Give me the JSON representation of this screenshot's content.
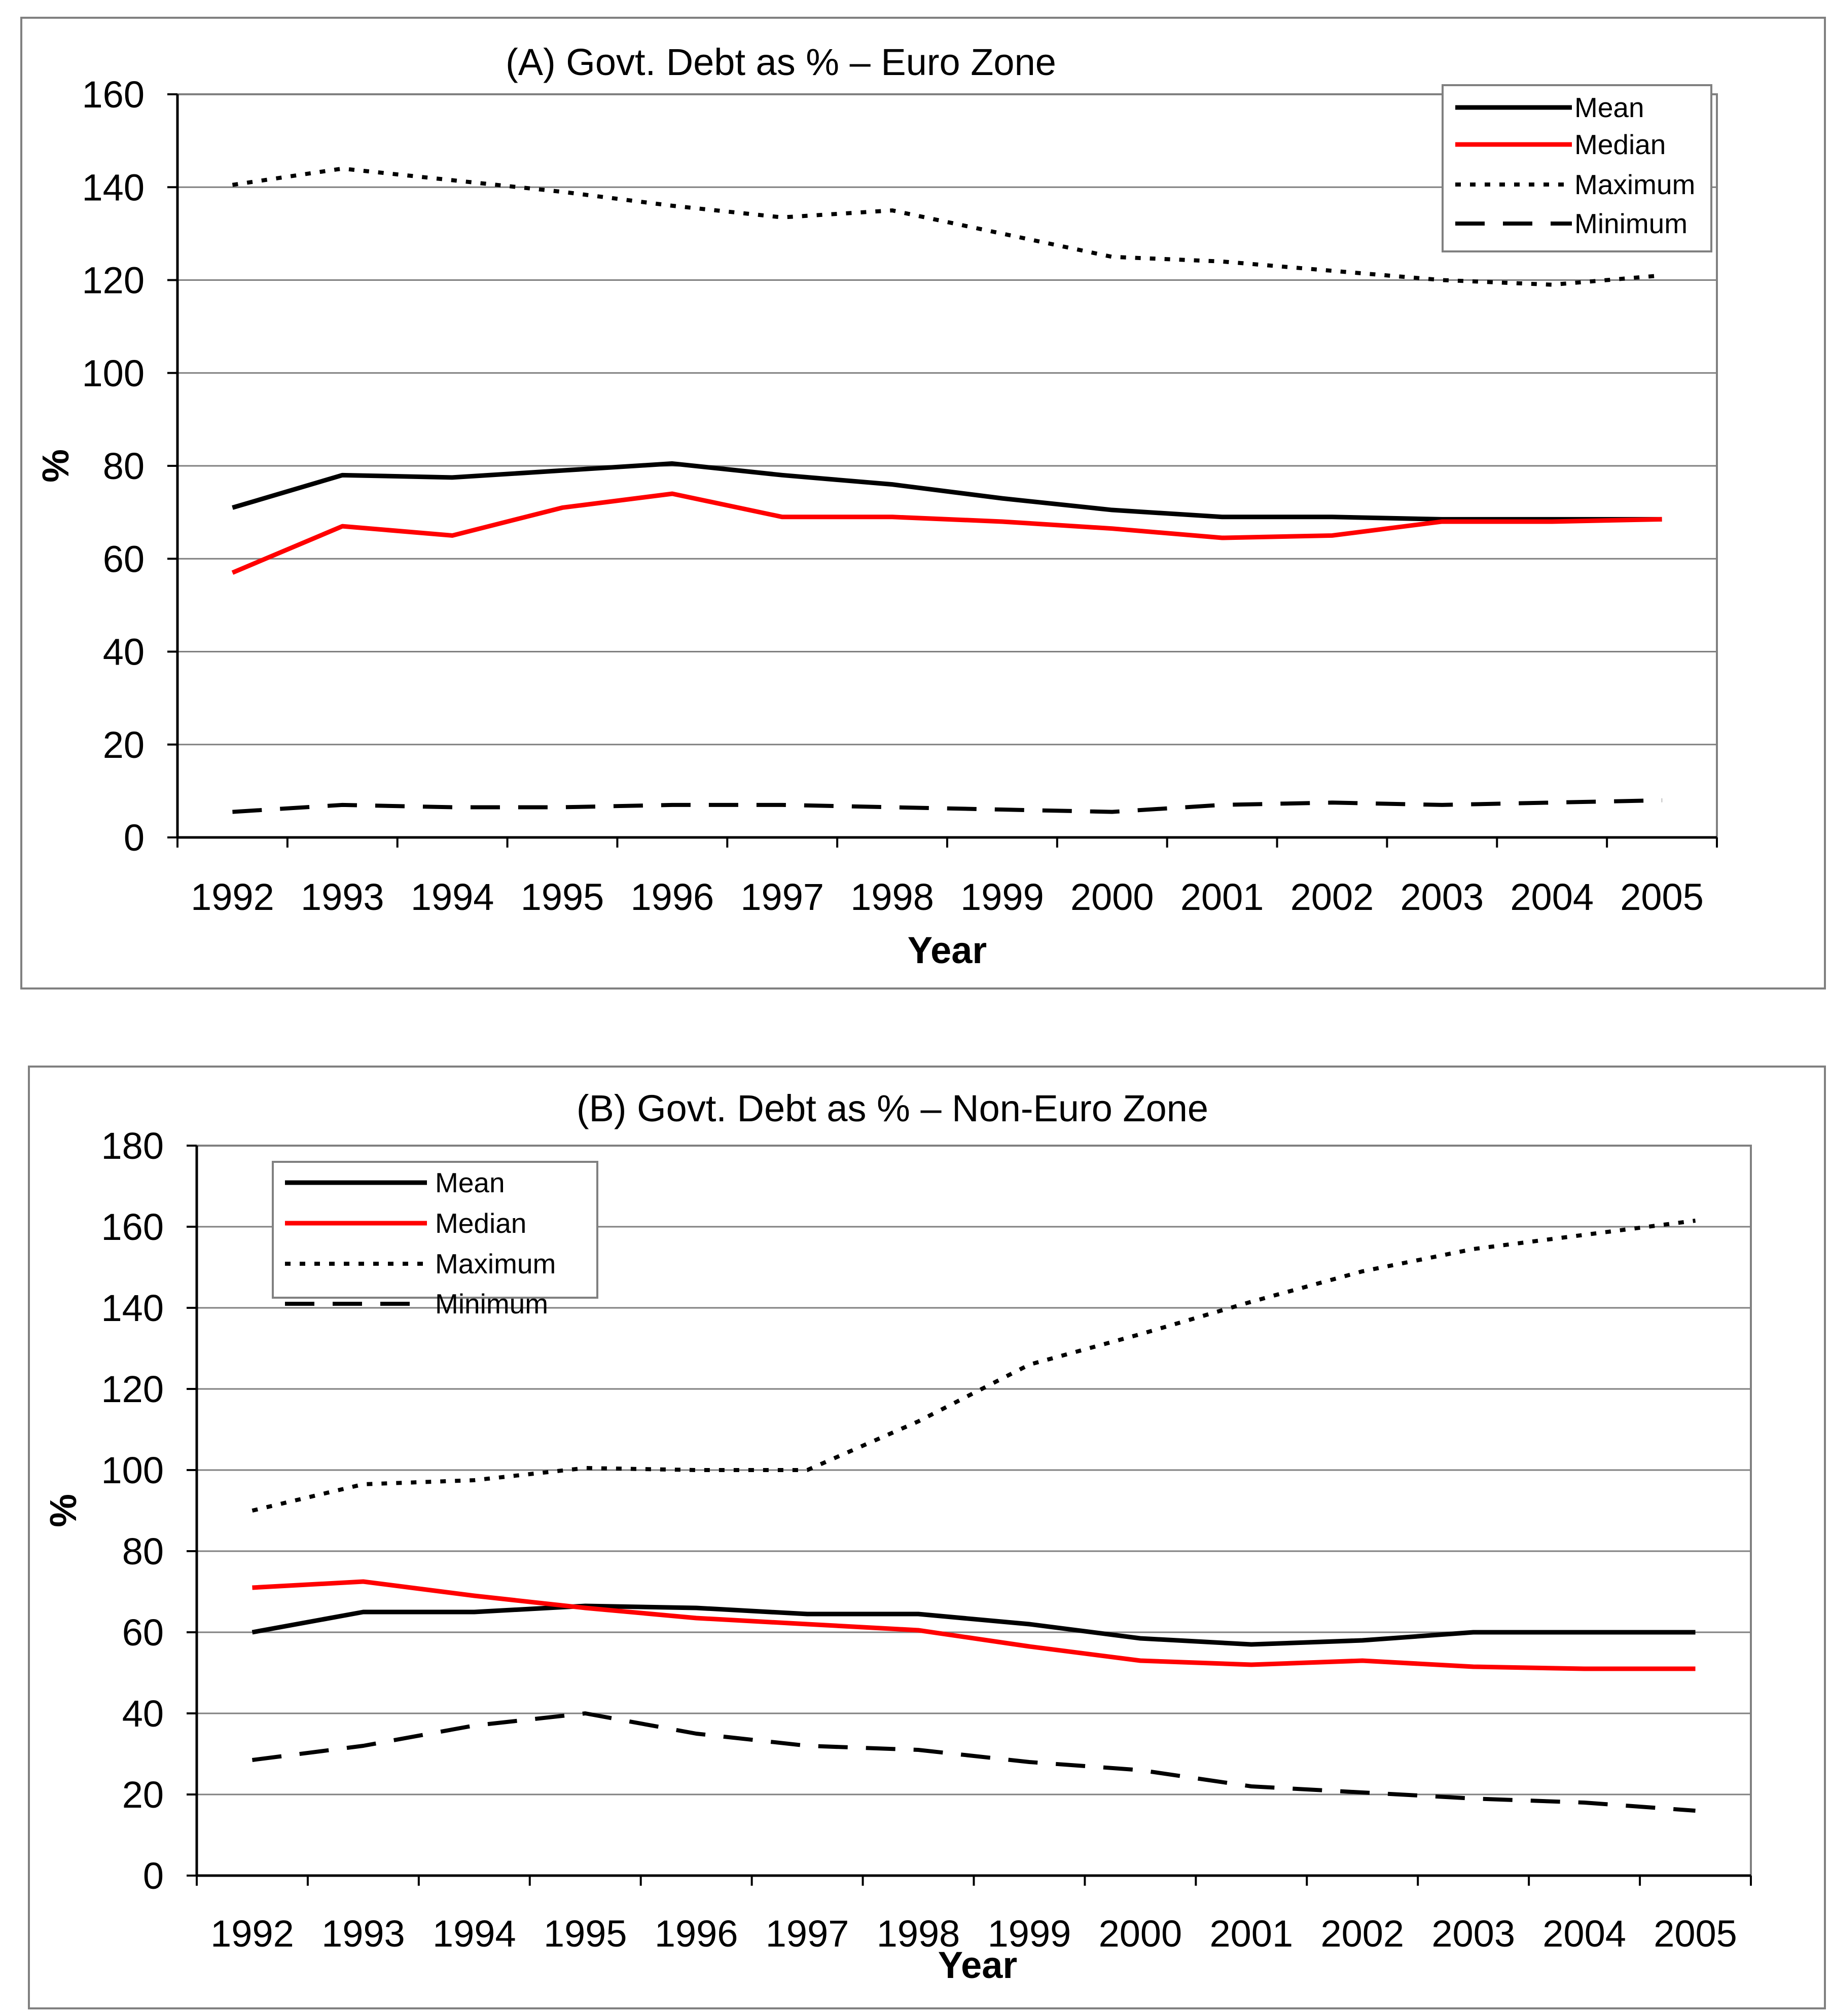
{
  "colors": {
    "mean": "#000000",
    "median": "#ff0000",
    "maximum": "#000000",
    "minimum": "#000000",
    "grid": "#808080",
    "frame": "#808080"
  },
  "chart_data": [
    {
      "type": "line",
      "title": "(A) Govt. Debt as % – Euro Zone",
      "xlabel": "Year",
      "ylabel": "%",
      "ylim": [
        0,
        160
      ],
      "yticks": [
        "0",
        "20",
        "40",
        "60",
        "80",
        "100",
        "120",
        "140",
        "160"
      ],
      "categories": [
        "1992",
        "1993",
        "1994",
        "1995",
        "1996",
        "1997",
        "1998",
        "1999",
        "2000",
        "2001",
        "2002",
        "2003",
        "2004",
        "2005"
      ],
      "grid": true,
      "legend": "top-right",
      "series": [
        {
          "name": "Mean",
          "style": "solid",
          "color": "#000000",
          "values": [
            71,
            78,
            77.5,
            79,
            80.5,
            78,
            76,
            73,
            70.5,
            69,
            69,
            68.5,
            68.5,
            68.5
          ]
        },
        {
          "name": "Median",
          "style": "solid",
          "color": "#ff0000",
          "values": [
            57,
            67,
            65,
            71,
            74,
            69,
            69,
            68,
            66.5,
            64.5,
            65,
            68,
            68,
            68.5
          ]
        },
        {
          "name": "Maximum",
          "style": "dotted",
          "color": "#000000",
          "values": [
            140.5,
            144,
            141.5,
            139,
            136,
            133.5,
            135,
            130,
            125,
            124,
            122,
            120,
            119,
            121
          ]
        },
        {
          "name": "Minimum",
          "style": "dashed",
          "color": "#000000",
          "values": [
            5.5,
            7,
            6.5,
            6.5,
            7,
            7,
            6.5,
            6,
            5.5,
            7,
            7.5,
            7,
            7.5,
            8
          ]
        }
      ]
    },
    {
      "type": "line",
      "title": "(B) Govt. Debt as % – Non-Euro Zone",
      "xlabel": "Year",
      "ylabel": "%",
      "ylim": [
        0,
        180
      ],
      "yticks": [
        "0",
        "20",
        "40",
        "60",
        "80",
        "100",
        "120",
        "140",
        "160",
        "180"
      ],
      "categories": [
        "1992",
        "1993",
        "1994",
        "1995",
        "1996",
        "1997",
        "1998",
        "1999",
        "2000",
        "2001",
        "2002",
        "2003",
        "2004",
        "2005"
      ],
      "grid": true,
      "legend": "top-left",
      "series": [
        {
          "name": "Mean",
          "style": "solid",
          "color": "#000000",
          "values": [
            60,
            65,
            65,
            66.5,
            66,
            64.5,
            64.5,
            62,
            58.5,
            57,
            58,
            60,
            60,
            60
          ]
        },
        {
          "name": "Median",
          "style": "solid",
          "color": "#ff0000",
          "values": [
            71,
            72.5,
            69,
            66,
            63.5,
            62,
            60.5,
            56.5,
            53,
            52,
            53,
            51.5,
            51,
            51
          ]
        },
        {
          "name": "Maximum",
          "style": "dotted",
          "color": "#000000",
          "values": [
            90,
            96.5,
            97.5,
            100.5,
            100,
            100,
            112,
            126,
            133.5,
            141.5,
            149,
            154.5,
            158,
            161.5
          ]
        },
        {
          "name": "Minimum",
          "style": "dashed",
          "color": "#000000",
          "values": [
            28.5,
            32,
            37,
            40,
            35,
            32,
            31,
            28,
            26,
            22,
            20.5,
            19,
            18,
            16
          ]
        }
      ]
    }
  ]
}
